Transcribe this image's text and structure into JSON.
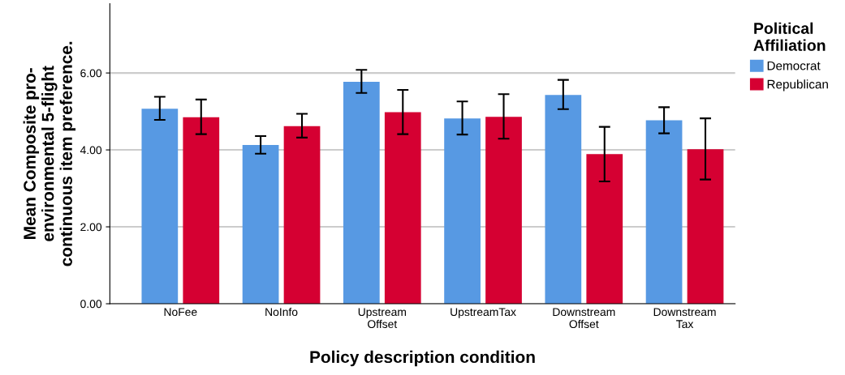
{
  "chart_data": {
    "type": "bar",
    "xlabel": "Policy description condition",
    "ylabel": "Mean Composite pro-\nenvironmental 5-flight\ncontinuous item preference.",
    "legend_title": "Political\nAffiliation",
    "categories": [
      "NoFee",
      "NoInfo",
      "Upstream\nOffset",
      "UpstreamTax",
      "Downstream\nOffset",
      "Downstream\nTax"
    ],
    "series": [
      {
        "name": "Democrat",
        "color": "#5799e3",
        "values": [
          5.07,
          4.13,
          5.77,
          4.82,
          5.43,
          4.77
        ],
        "errors": [
          [
            4.78,
            5.38
          ],
          [
            3.9,
            4.36
          ],
          [
            5.48,
            6.08
          ],
          [
            4.4,
            5.26
          ],
          [
            5.06,
            5.82
          ],
          [
            4.43,
            5.11
          ]
        ]
      },
      {
        "name": "Republican",
        "color": "#d50032",
        "values": [
          4.85,
          4.62,
          4.98,
          4.86,
          3.89,
          4.02
        ],
        "errors": [
          [
            4.41,
            5.31
          ],
          [
            4.32,
            4.94
          ],
          [
            4.41,
            5.56
          ],
          [
            4.29,
            5.45
          ],
          [
            3.18,
            4.6
          ],
          [
            3.23,
            4.82
          ]
        ]
      }
    ],
    "ylim": [
      0,
      7.8
    ],
    "yticks": [
      {
        "value": 0,
        "label": "0.00"
      },
      {
        "value": 2,
        "label": "2.00"
      },
      {
        "value": 4,
        "label": "4.00"
      },
      {
        "value": 6,
        "label": "6.00"
      }
    ],
    "grid": "y",
    "legend": "top right"
  }
}
